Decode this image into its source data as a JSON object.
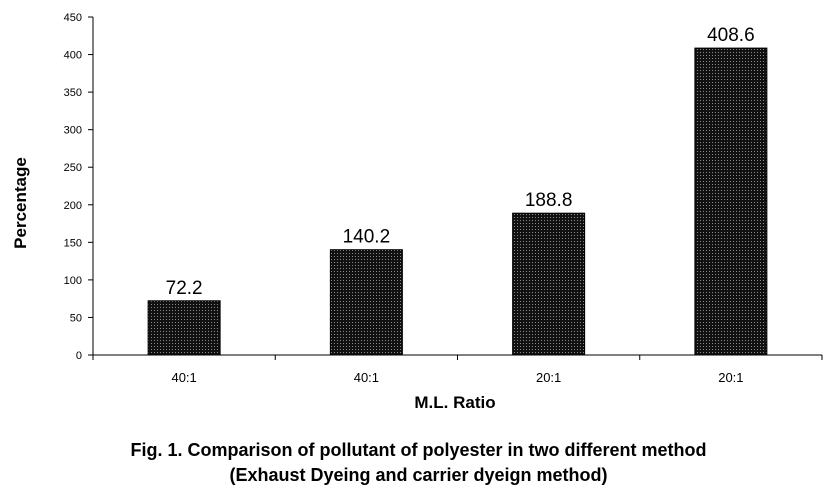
{
  "chart_data": {
    "type": "bar",
    "categories": [
      "40:1",
      "40:1",
      "20:1",
      "20:1"
    ],
    "values": [
      72.2,
      140.2,
      188.8,
      408.6
    ],
    "data_labels": [
      "72.2",
      "140.2",
      "188.8",
      "408.6"
    ],
    "xlabel": "M.L. Ratio",
    "ylabel": "Percentage",
    "ylim": [
      0,
      450
    ],
    "yticks": [
      0,
      50,
      100,
      150,
      200,
      250,
      300,
      350,
      400,
      450
    ],
    "grid": false,
    "bar_style": "dotted-dark",
    "bar_color": "#111111",
    "caption_line1": "Fig. 1. Comparison of pollutant of polyester in two different method",
    "caption_line2": "(Exhaust Dyeing and carrier dyeign method)"
  }
}
